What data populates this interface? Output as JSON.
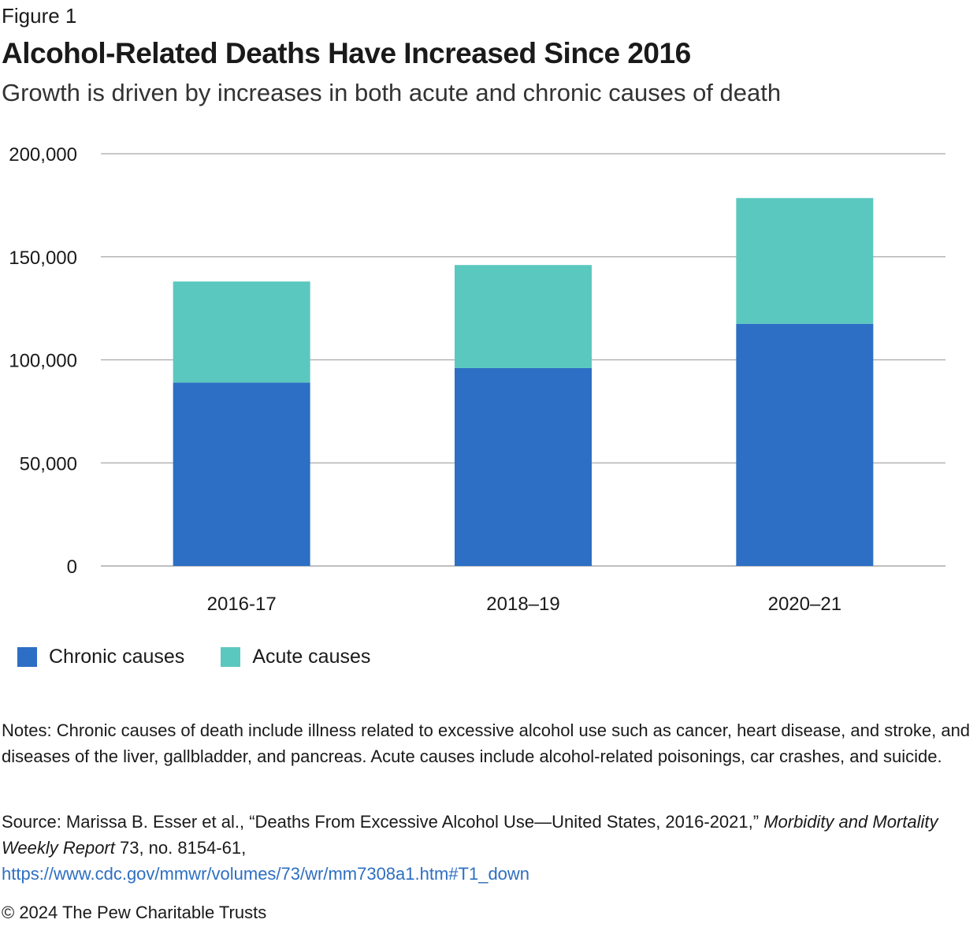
{
  "figure_label": "Figure 1",
  "colors": {
    "chronic": "#2c6fc4",
    "acute": "#5bc8bf",
    "grid": "#a8a8a8",
    "link": "#2e6fc2"
  },
  "chart_data": {
    "type": "bar",
    "stacked": true,
    "title": "Alcohol-Related Deaths Have Increased Since 2016",
    "subtitle": "Growth is driven by increases in both acute and chronic causes of death",
    "categories": [
      "2016-17",
      "2018–19",
      "2020–21"
    ],
    "series": [
      {
        "name": "Chronic causes",
        "color": "#2c6fc4",
        "values": [
          89000,
          96000,
          117500
        ]
      },
      {
        "name": "Acute causes",
        "color": "#5bc8bf",
        "values": [
          49000,
          50000,
          61000
        ]
      }
    ],
    "ylim": [
      0,
      200000
    ],
    "yticks": [
      {
        "value": 0,
        "label": "0"
      },
      {
        "value": 50000,
        "label": "50,000"
      },
      {
        "value": 100000,
        "label": "100,000"
      },
      {
        "value": 150000,
        "label": "150,000"
      },
      {
        "value": 200000,
        "label": "200,000"
      }
    ],
    "grid": true,
    "legend_position": "bottom-left"
  },
  "legend": {
    "chronic_label": "Chronic causes",
    "acute_label": "Acute causes"
  },
  "notes": "Notes: Chronic causes of death include illness related to excessive alcohol use such as cancer, heart disease, and stroke, and diseases of the liver, gallbladder, and pancreas. Acute causes include alcohol-related poisonings, car crashes, and suicide.",
  "source": {
    "prefix": "Source: Marissa B. Esser et al., “Deaths From Excessive Alcohol Use—United States, 2016-2021,” ",
    "journal": "Morbidity and Mortality Weekly Report",
    "suffix": " 73, no. 8154-61,",
    "url": "https://www.cdc.gov/mmwr/volumes/73/wr/mm7308a1.htm#T1_down"
  },
  "copyright": "© 2024 The Pew Charitable Trusts"
}
